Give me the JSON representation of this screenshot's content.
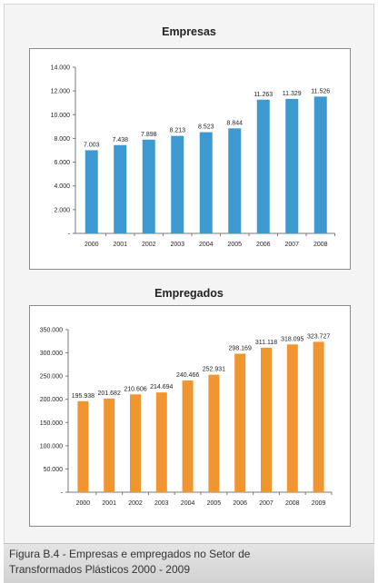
{
  "figure": {
    "caption_line1": "Figura B.4 - Empresas e empregados no Setor de",
    "caption_line2": "Transformados Plásticos 2000 - 2009"
  },
  "chart_data": [
    {
      "type": "bar",
      "title": "Empresas",
      "categories": [
        "2000",
        "2001",
        "2002",
        "2003",
        "2004",
        "2005",
        "2006",
        "2007",
        "2008"
      ],
      "values": [
        7003,
        7438,
        7898,
        8213,
        8523,
        8844,
        11263,
        11329,
        11526
      ],
      "value_labels": [
        "7.003",
        "7.438",
        "7.898",
        "8.213",
        "8.523",
        "8.844",
        "11.263",
        "11.329",
        "11.526"
      ],
      "ylim": [
        0,
        14000
      ],
      "yticks": [
        0,
        2000,
        4000,
        6000,
        8000,
        10000,
        12000,
        14000
      ],
      "ytick_labels": [
        "-",
        "2.000",
        "4.000",
        "6.000",
        "8.000",
        "10.000",
        "12.000",
        "14.000"
      ],
      "color": "#3d9ad1",
      "grid": false
    },
    {
      "type": "bar",
      "title": "Empregados",
      "categories": [
        "2000",
        "2001",
        "2002",
        "2003",
        "2004",
        "2005",
        "2006",
        "2007",
        "2008",
        "2009"
      ],
      "values": [
        195938,
        201682,
        210606,
        214694,
        240466,
        252931,
        298169,
        311118,
        318095,
        323727
      ],
      "value_labels": [
        "195.938",
        "201.682",
        "210.606",
        "214.694",
        "240.466",
        "252.931",
        "298.169",
        "311.118",
        "318.095",
        "323.727"
      ],
      "ylim": [
        0,
        350000
      ],
      "yticks": [
        0,
        50000,
        100000,
        150000,
        200000,
        250000,
        300000,
        350000
      ],
      "ytick_labels": [
        "-",
        "50.000",
        "100.000",
        "150.000",
        "200.000",
        "250.000",
        "300.000",
        "350.000"
      ],
      "color": "#f0952f",
      "grid": false
    }
  ]
}
